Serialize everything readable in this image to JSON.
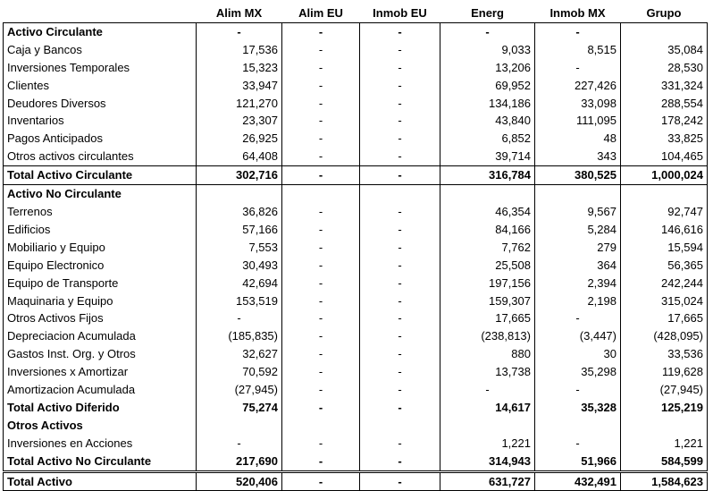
{
  "headers": [
    "",
    "Alim MX",
    "Alim EU",
    "Inmob EU",
    "Energ",
    "Inmob MX",
    "Grupo"
  ],
  "rows": [
    {
      "label": "Activo Circulante",
      "kind": "section",
      "cells": [
        "-",
        "-",
        "-",
        "-",
        "-",
        ""
      ]
    },
    {
      "label": "Caja y Bancos",
      "kind": "item",
      "cells": [
        "17,536",
        "-",
        "-",
        "9,033",
        "8,515",
        "35,084"
      ]
    },
    {
      "label": "Inversiones Temporales",
      "kind": "item",
      "cells": [
        "15,323",
        "-",
        "-",
        "13,206",
        "-",
        "28,530"
      ]
    },
    {
      "label": "Clientes",
      "kind": "item",
      "cells": [
        "33,947",
        "-",
        "-",
        "69,952",
        "227,426",
        "331,324"
      ]
    },
    {
      "label": "Deudores Diversos",
      "kind": "item",
      "cells": [
        "121,270",
        "-",
        "-",
        "134,186",
        "33,098",
        "288,554"
      ]
    },
    {
      "label": "Inventarios",
      "kind": "item",
      "cells": [
        "23,307",
        "-",
        "-",
        "43,840",
        "111,095",
        "178,242"
      ]
    },
    {
      "label": "Pagos Anticipados",
      "kind": "item",
      "cells": [
        "26,925",
        "-",
        "-",
        "6,852",
        "48",
        "33,825"
      ]
    },
    {
      "label": "Otros activos circulantes",
      "kind": "item",
      "cells": [
        "64,408",
        "-",
        "-",
        "39,714",
        "343",
        "104,465"
      ]
    },
    {
      "label": "Total Activo Circulante",
      "kind": "total",
      "cells": [
        "302,716",
        "-",
        "-",
        "316,784",
        "380,525",
        "1,000,024"
      ]
    },
    {
      "label": "Activo No Circulante",
      "kind": "section",
      "cells": [
        "",
        "",
        "",
        "",
        "",
        ""
      ]
    },
    {
      "label": "Terrenos",
      "kind": "item",
      "cells": [
        "36,826",
        "-",
        "-",
        "46,354",
        "9,567",
        "92,747"
      ]
    },
    {
      "label": "Edificios",
      "kind": "item",
      "cells": [
        "57,166",
        "-",
        "-",
        "84,166",
        "5,284",
        "146,616"
      ]
    },
    {
      "label": "Mobiliario y Equipo",
      "kind": "item",
      "cells": [
        "7,553",
        "-",
        "-",
        "7,762",
        "279",
        "15,594"
      ]
    },
    {
      "label": "Equipo Electronico",
      "kind": "item",
      "cells": [
        "30,493",
        "-",
        "-",
        "25,508",
        "364",
        "56,365"
      ]
    },
    {
      "label": "Equipo de Transporte",
      "kind": "item",
      "cells": [
        "42,694",
        "-",
        "-",
        "197,156",
        "2,394",
        "242,244"
      ]
    },
    {
      "label": "Maquinaria y Equipo",
      "kind": "item",
      "cells": [
        "153,519",
        "-",
        "-",
        "159,307",
        "2,198",
        "315,024"
      ]
    },
    {
      "label": "Otros Activos Fijos",
      "kind": "item",
      "cells": [
        "-",
        "-",
        "-",
        "17,665",
        "-",
        "17,665"
      ]
    },
    {
      "label": "Depreciacion Acumulada",
      "kind": "item",
      "cells": [
        "(185,835)",
        "-",
        "-",
        "(238,813)",
        "(3,447)",
        "(428,095)"
      ]
    },
    {
      "label": "Gastos Inst. Org. y Otros",
      "kind": "item",
      "cells": [
        "32,627",
        "-",
        "-",
        "880",
        "30",
        "33,536"
      ]
    },
    {
      "label": "Inversiones x Amortizar",
      "kind": "item",
      "cells": [
        "70,592",
        "-",
        "-",
        "13,738",
        "35,298",
        "119,628"
      ]
    },
    {
      "label": "Amortizacion Acumulada",
      "kind": "item",
      "cells": [
        "(27,945)",
        "-",
        "-",
        "-",
        "-",
        "(27,945)"
      ]
    },
    {
      "label": "Total Activo Diferido",
      "kind": "subtotal",
      "cells": [
        "75,274",
        "-",
        "-",
        "14,617",
        "35,328",
        "125,219"
      ]
    },
    {
      "label": "Otros Activos",
      "kind": "section",
      "cells": [
        "",
        "",
        "",
        "",
        "",
        ""
      ]
    },
    {
      "label": "Inversiones en Acciones",
      "kind": "item",
      "cells": [
        "-",
        "-",
        "-",
        "1,221",
        "-",
        "1,221"
      ]
    },
    {
      "label": "Total Activo No Circulante",
      "kind": "total-dbl",
      "cells": [
        "217,690",
        "-",
        "-",
        "314,943",
        "51,966",
        "584,599"
      ]
    },
    {
      "label": "Total Activo",
      "kind": "total-final",
      "cells": [
        "520,406",
        "-",
        "-",
        "631,727",
        "432,491",
        "1,584,623"
      ]
    }
  ]
}
